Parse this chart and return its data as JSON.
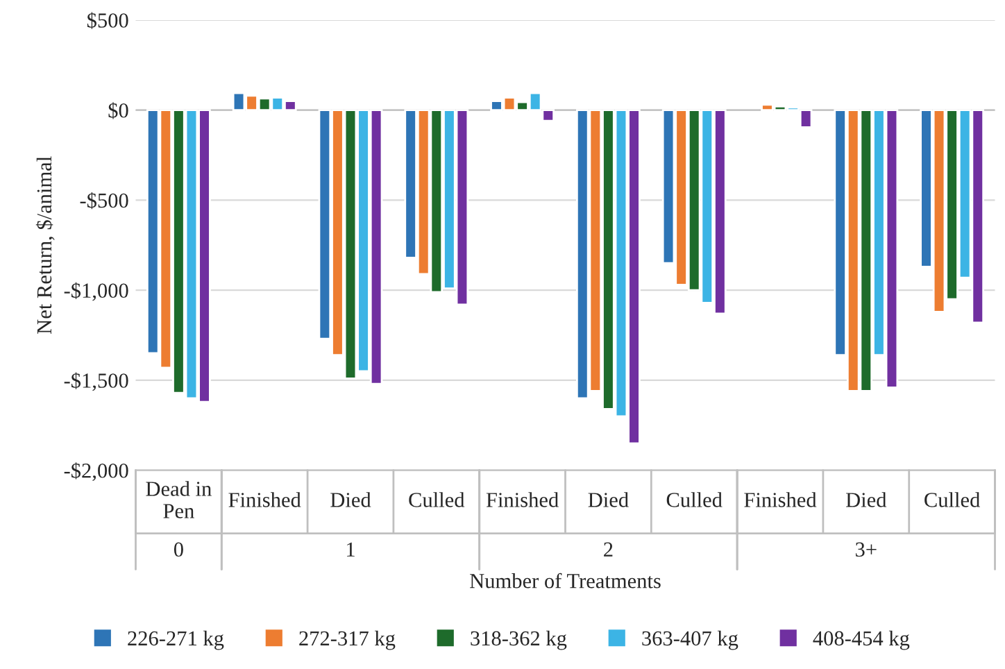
{
  "chart_data": {
    "type": "bar",
    "categories": [
      "Dead in Pen",
      "Finished",
      "Died",
      "Culled",
      "Finished",
      "Died",
      "Culled",
      "Finished",
      "Died",
      "Culled"
    ],
    "series": [
      {
        "name": "226-271 kg",
        "color": "#2e75b6",
        "values": [
          -1350,
          95,
          -1270,
          -820,
          50,
          -1600,
          -850,
          null,
          -1360,
          -870
        ]
      },
      {
        "name": "272-317 kg",
        "color": "#ed7d31",
        "values": [
          -1430,
          80,
          -1360,
          -910,
          70,
          -1560,
          -970,
          30,
          -1560,
          -1120
        ]
      },
      {
        "name": "318-362 kg",
        "color": "#1e6b2b",
        "values": [
          -1570,
          65,
          -1490,
          -1010,
          45,
          -1660,
          -1000,
          20,
          -1560,
          -1050
        ]
      },
      {
        "name": "363-407 kg",
        "color": "#3cb4e5",
        "values": [
          -1600,
          70,
          -1450,
          -990,
          95,
          -1700,
          -1070,
          15,
          -1360,
          -930
        ]
      },
      {
        "name": "408-454 kg",
        "color": "#7030a0",
        "values": [
          -1620,
          50,
          -1520,
          -1080,
          -60,
          -1850,
          -1130,
          -95,
          -1540,
          -1180
        ]
      }
    ],
    "xlabel": "Number of Treatments",
    "ylabel": "Net Return, $/animal",
    "annotations": [
      "0",
      "1",
      "2",
      "3+"
    ],
    "ylim": [
      -2000,
      500
    ],
    "yticks": [
      {
        "value": -2000,
        "label": "-$2,000"
      },
      {
        "value": -1500,
        "label": "-$1,500"
      },
      {
        "value": -1000,
        "label": "-$1,000"
      },
      {
        "value": -500,
        "label": "-$500"
      },
      {
        "value": 0,
        "label": "$0"
      },
      {
        "value": 500,
        "label": "$500"
      }
    ],
    "grid": "y",
    "legend": "bottom"
  }
}
